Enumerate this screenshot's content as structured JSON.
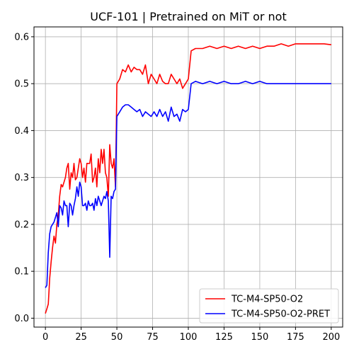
{
  "chart_data": {
    "type": "line",
    "title": "UCF-101 | Pretrained on MiT or not",
    "xlabel": "",
    "ylabel": "",
    "xlim": [
      -8,
      208
    ],
    "ylim": [
      -0.019,
      0.621
    ],
    "xticks": [
      0,
      25,
      50,
      75,
      100,
      125,
      150,
      175,
      200
    ],
    "yticks": [
      0.0,
      0.1,
      0.2,
      0.3,
      0.4,
      0.5,
      0.6
    ],
    "grid": true,
    "legend_position": "lower-right",
    "series": [
      {
        "name": "TC-M4-SP50-O2",
        "color": "#ff0000",
        "x": [
          0,
          1,
          2,
          3,
          4,
          5,
          6,
          7,
          8,
          9,
          10,
          11,
          12,
          13,
          14,
          15,
          16,
          17,
          18,
          19,
          20,
          21,
          22,
          23,
          24,
          25,
          26,
          27,
          28,
          29,
          30,
          31,
          32,
          33,
          34,
          35,
          36,
          37,
          38,
          39,
          40,
          41,
          42,
          43,
          44,
          45,
          46,
          47,
          48,
          49,
          50,
          52,
          54,
          56,
          58,
          60,
          62,
          64,
          66,
          68,
          70,
          72,
          74,
          76,
          78,
          80,
          82,
          84,
          86,
          88,
          90,
          92,
          94,
          96,
          98,
          100,
          102,
          105,
          110,
          115,
          120,
          125,
          130,
          135,
          140,
          145,
          150,
          155,
          160,
          165,
          170,
          175,
          180,
          185,
          190,
          195,
          200
        ],
        "values": [
          0.01,
          0.02,
          0.03,
          0.085,
          0.12,
          0.15,
          0.175,
          0.16,
          0.2,
          0.22,
          0.26,
          0.285,
          0.28,
          0.29,
          0.3,
          0.32,
          0.33,
          0.275,
          0.31,
          0.3,
          0.33,
          0.295,
          0.3,
          0.32,
          0.34,
          0.33,
          0.3,
          0.32,
          0.29,
          0.33,
          0.33,
          0.33,
          0.35,
          0.29,
          0.3,
          0.32,
          0.28,
          0.34,
          0.31,
          0.36,
          0.33,
          0.36,
          0.31,
          0.3,
          0.26,
          0.37,
          0.33,
          0.32,
          0.34,
          0.28,
          0.5,
          0.51,
          0.53,
          0.525,
          0.54,
          0.525,
          0.535,
          0.53,
          0.53,
          0.52,
          0.54,
          0.5,
          0.52,
          0.51,
          0.5,
          0.52,
          0.505,
          0.5,
          0.5,
          0.52,
          0.51,
          0.5,
          0.51,
          0.49,
          0.5,
          0.51,
          0.57,
          0.575,
          0.575,
          0.58,
          0.575,
          0.58,
          0.575,
          0.58,
          0.575,
          0.58,
          0.575,
          0.58,
          0.58,
          0.585,
          0.58,
          0.585,
          0.585,
          0.585,
          0.585,
          0.585,
          0.583
        ]
      },
      {
        "name": "TC-M4-SP50-O2-PRET",
        "color": "#0000ff",
        "x": [
          0,
          1,
          2,
          3,
          4,
          5,
          6,
          7,
          8,
          9,
          10,
          11,
          12,
          13,
          14,
          15,
          16,
          17,
          18,
          19,
          20,
          21,
          22,
          23,
          24,
          25,
          26,
          27,
          28,
          29,
          30,
          31,
          32,
          33,
          34,
          35,
          36,
          37,
          38,
          39,
          40,
          41,
          42,
          43,
          44,
          45,
          46,
          47,
          48,
          49,
          50,
          52,
          54,
          56,
          58,
          60,
          62,
          64,
          66,
          68,
          70,
          72,
          74,
          76,
          78,
          80,
          82,
          84,
          86,
          88,
          90,
          92,
          94,
          96,
          98,
          100,
          102,
          105,
          110,
          115,
          120,
          125,
          130,
          135,
          140,
          145,
          150,
          155,
          160,
          165,
          170,
          175,
          180,
          185,
          190,
          195,
          200
        ],
        "values": [
          0.065,
          0.07,
          0.14,
          0.18,
          0.195,
          0.2,
          0.205,
          0.215,
          0.225,
          0.195,
          0.24,
          0.235,
          0.22,
          0.25,
          0.24,
          0.24,
          0.195,
          0.245,
          0.24,
          0.22,
          0.24,
          0.255,
          0.28,
          0.26,
          0.29,
          0.28,
          0.24,
          0.24,
          0.245,
          0.23,
          0.25,
          0.24,
          0.24,
          0.245,
          0.23,
          0.255,
          0.24,
          0.26,
          0.25,
          0.24,
          0.25,
          0.26,
          0.255,
          0.27,
          0.25,
          0.13,
          0.26,
          0.255,
          0.27,
          0.275,
          0.43,
          0.44,
          0.45,
          0.455,
          0.455,
          0.45,
          0.445,
          0.44,
          0.445,
          0.43,
          0.44,
          0.435,
          0.43,
          0.44,
          0.43,
          0.445,
          0.43,
          0.44,
          0.42,
          0.45,
          0.43,
          0.435,
          0.42,
          0.445,
          0.44,
          0.445,
          0.5,
          0.505,
          0.5,
          0.505,
          0.5,
          0.505,
          0.5,
          0.5,
          0.505,
          0.5,
          0.505,
          0.5,
          0.5,
          0.5,
          0.5,
          0.5,
          0.5,
          0.5,
          0.5,
          0.5,
          0.5
        ]
      }
    ]
  }
}
